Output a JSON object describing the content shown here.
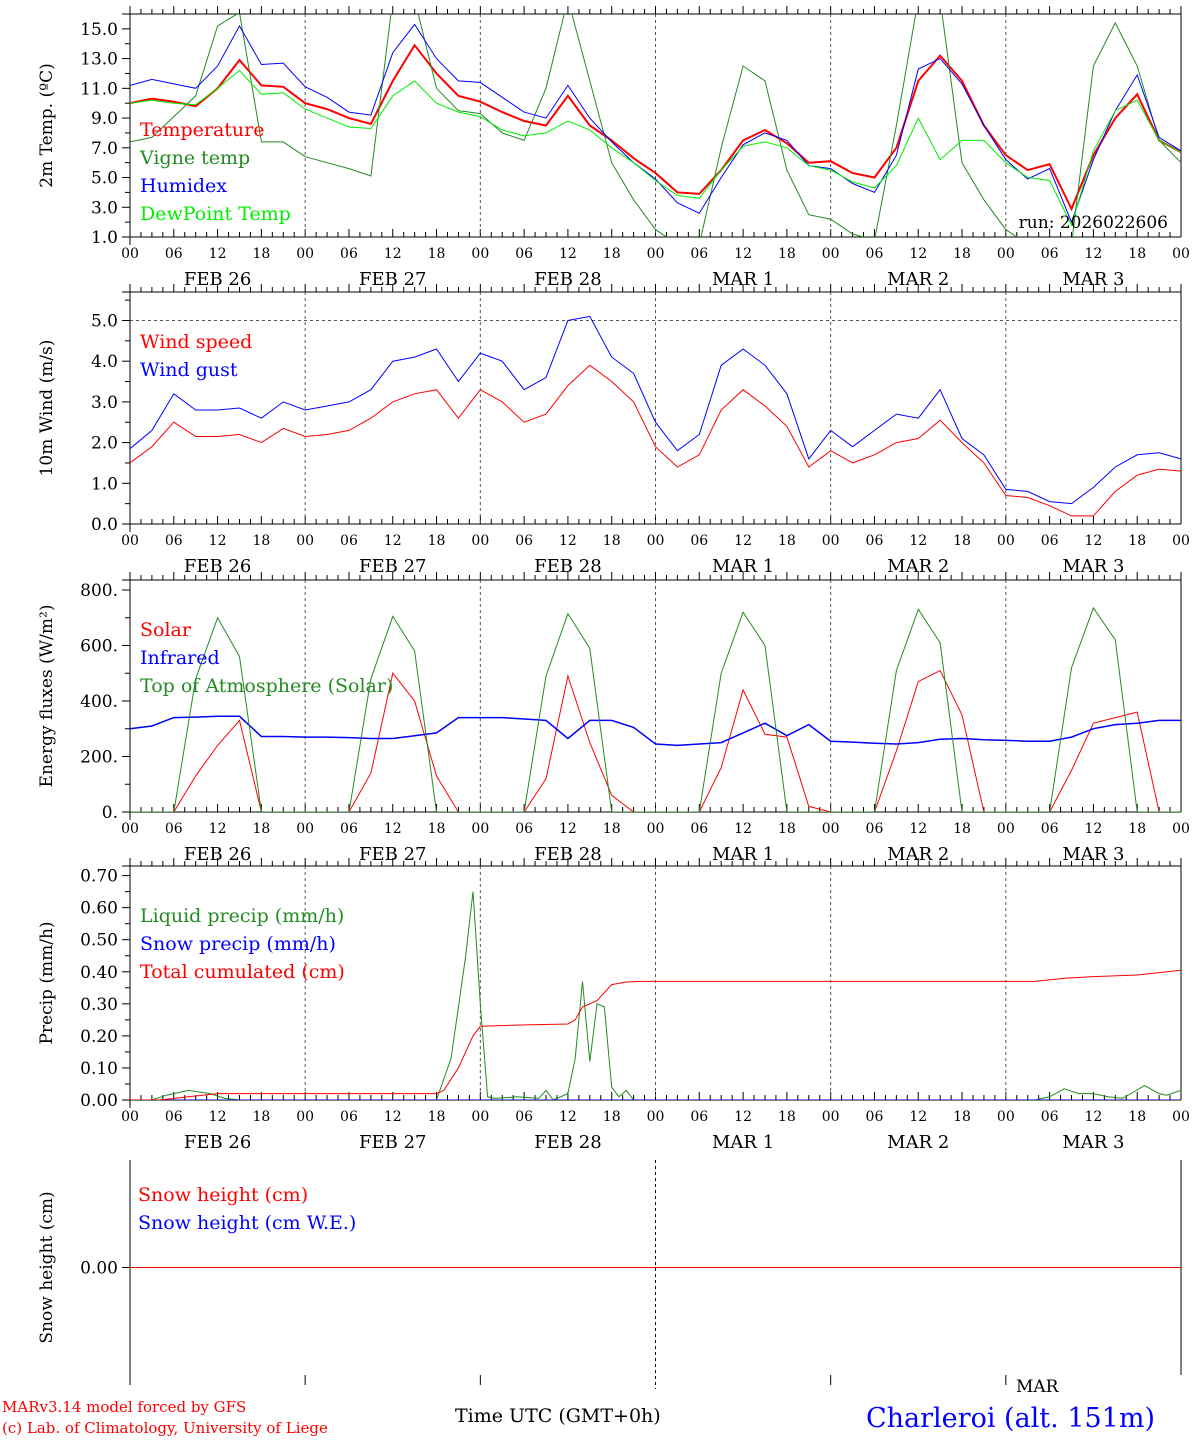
{
  "footer": {
    "credit1": "MARv3.14 model forced by GFS",
    "credit2": "(c) Lab. of Climatology, University of Liege",
    "xlabel": "Time UTC (GMT+0h)",
    "station": "Charleroi (alt. 151m)",
    "overlap_label": "MAR"
  },
  "colors": {
    "red": "#ff0000",
    "green": "#228b22",
    "blue": "#0000ff",
    "lime": "#00ee00"
  },
  "chart_data": [
    {
      "type": "line",
      "ylabel": "2m Temp. (ºC)",
      "ylim": [
        1,
        16
      ],
      "yticks": [
        "1.0",
        "3.0",
        "5.0",
        "7.0",
        "9.0",
        "11.0",
        "13.0",
        "15.0"
      ],
      "ytick_values": [
        1,
        3,
        5,
        7,
        9,
        11,
        13,
        15
      ],
      "annotation": "run: 2026022606",
      "xlabel_hours": [
        "00",
        "06",
        "12",
        "18",
        "00",
        "06",
        "12",
        "18",
        "00",
        "06",
        "12",
        "18",
        "00",
        "06",
        "12",
        "18",
        "00",
        "06",
        "12",
        "18",
        "00",
        "06",
        "12",
        "18",
        "00"
      ],
      "days": [
        "FEB 26",
        "FEB 27",
        "FEB 28",
        "MAR  1",
        "MAR  2",
        "MAR  3"
      ],
      "series": [
        {
          "name": "Temperature",
          "color": "#ff0000",
          "width": 2,
          "step": 3,
          "values": [
            10.0,
            10.3,
            10.1,
            9.8,
            11.0,
            12.9,
            11.2,
            11.1,
            10.0,
            9.6,
            9.0,
            8.6,
            11.5,
            13.9,
            12.0,
            10.5,
            10.1,
            9.4,
            8.8,
            8.5,
            10.5,
            8.5,
            7.5,
            6.3,
            5.3,
            4.0,
            3.9,
            5.5,
            7.5,
            8.2,
            7.3,
            6.0,
            6.1,
            5.3,
            5.0,
            7.0,
            11.5,
            13.2,
            11.5,
            8.5,
            6.5,
            5.5,
            5.9,
            2.9,
            6.5,
            9.0,
            10.6,
            7.5,
            6.7
          ]
        },
        {
          "name": "Vigne temp",
          "color": "#228b22",
          "width": 1,
          "step": 3,
          "values": [
            7.4,
            7.7,
            9.1,
            10.5,
            15.2,
            16.1,
            7.4,
            7.4,
            6.4,
            6.0,
            5.6,
            5.1,
            17,
            17,
            11.0,
            9.5,
            9.3,
            8.0,
            7.5,
            11.0,
            17,
            11.5,
            6.0,
            3.5,
            1.5,
            0.5,
            0.5,
            7.0,
            12.5,
            11.5,
            5.5,
            2.5,
            2.2,
            1.2,
            0.8,
            8.5,
            17,
            17,
            6.0,
            3.5,
            1.5,
            0.5,
            0.3,
            0.5,
            12.5,
            15.4,
            12.5,
            7.5,
            6.0
          ]
        },
        {
          "name": "Humidex",
          "color": "#0000ff",
          "width": 1,
          "step": 3,
          "values": [
            11.2,
            11.6,
            11.3,
            11.0,
            12.5,
            15.2,
            12.6,
            12.7,
            11.1,
            10.4,
            9.4,
            9.2,
            13.4,
            15.3,
            13.0,
            11.5,
            11.4,
            10.4,
            9.4,
            9.0,
            11.2,
            9.0,
            7.4,
            6.0,
            4.9,
            3.3,
            2.6,
            5.0,
            7.2,
            8.0,
            7.5,
            5.8,
            5.6,
            4.6,
            4.0,
            6.5,
            12.3,
            13.0,
            11.3,
            8.5,
            6.2,
            4.9,
            5.6,
            2.0,
            6.2,
            9.5,
            11.9,
            7.7,
            6.8
          ]
        },
        {
          "name": "DewPoint Temp",
          "color": "#00ee00",
          "width": 1,
          "step": 3,
          "values": [
            10.0,
            10.2,
            10.0,
            9.9,
            11.0,
            12.2,
            10.6,
            10.7,
            9.6,
            9.0,
            8.4,
            8.3,
            10.5,
            11.5,
            10.0,
            9.4,
            9.1,
            8.2,
            7.8,
            8.0,
            8.8,
            8.2,
            7.0,
            6.0,
            4.8,
            3.8,
            3.6,
            5.5,
            7.1,
            7.4,
            7.0,
            5.8,
            5.5,
            4.7,
            4.3,
            5.8,
            9.0,
            6.2,
            7.5,
            7.5,
            6.0,
            5.0,
            4.8,
            1.8,
            6.8,
            9.5,
            10.2,
            7.5,
            6.7
          ]
        }
      ]
    },
    {
      "type": "line",
      "ylabel": "10m Wind (m/s)",
      "ylim": [
        0,
        5.7
      ],
      "yticks": [
        "0.0",
        "1.0",
        "2.0",
        "3.0",
        "4.0",
        "5.0"
      ],
      "ytick_values": [
        0,
        1,
        2,
        3,
        4,
        5
      ],
      "hline": 5,
      "series": [
        {
          "name": "Wind speed",
          "color": "#ff0000",
          "width": 1,
          "step": 3,
          "values": [
            1.5,
            1.9,
            2.5,
            2.15,
            2.15,
            2.2,
            2.0,
            2.35,
            2.15,
            2.2,
            2.3,
            2.6,
            3.0,
            3.2,
            3.3,
            2.6,
            3.3,
            3.0,
            2.5,
            2.7,
            3.4,
            3.9,
            3.5,
            3.0,
            1.9,
            1.4,
            1.7,
            2.8,
            3.3,
            2.9,
            2.4,
            1.4,
            1.8,
            1.5,
            1.7,
            2.0,
            2.1,
            2.55,
            2.0,
            1.5,
            0.7,
            0.65,
            0.45,
            0.2,
            0.2,
            0.8,
            1.2,
            1.35,
            1.3
          ]
        },
        {
          "name": "Wind gust",
          "color": "#0000ff",
          "width": 1,
          "step": 3,
          "values": [
            1.85,
            2.3,
            3.2,
            2.8,
            2.8,
            2.85,
            2.6,
            3.0,
            2.8,
            2.9,
            3.0,
            3.3,
            4.0,
            4.1,
            4.3,
            3.5,
            4.2,
            4.0,
            3.3,
            3.6,
            5.0,
            5.1,
            4.1,
            3.7,
            2.5,
            1.8,
            2.2,
            3.9,
            4.3,
            3.9,
            3.2,
            1.6,
            2.3,
            1.9,
            2.3,
            2.7,
            2.6,
            3.3,
            2.1,
            1.7,
            0.85,
            0.8,
            0.55,
            0.5,
            0.9,
            1.4,
            1.7,
            1.75,
            1.6
          ]
        }
      ]
    },
    {
      "type": "line",
      "ylabel": "Energy fluxes (W/m²)",
      "ylim": [
        0,
        836
      ],
      "yticks": [
        "0.",
        "200.",
        "400.",
        "600.",
        "800."
      ],
      "ytick_values": [
        0,
        200,
        400,
        600,
        800
      ],
      "series": [
        {
          "name": "Solar",
          "color": "#ff0000",
          "width": 1,
          "step": 3,
          "values": [
            0,
            0,
            0,
            130,
            240,
            330,
            0,
            0,
            0,
            0,
            0,
            140,
            500,
            400,
            130,
            0,
            0,
            0,
            0,
            120,
            490,
            250,
            60,
            0,
            0,
            0,
            0,
            160,
            440,
            280,
            270,
            20,
            0,
            0,
            0,
            220,
            470,
            510,
            350,
            0,
            0,
            0,
            0,
            150,
            320,
            340,
            360,
            0,
            0
          ]
        },
        {
          "name": "Infrared",
          "color": "#0000ff",
          "width": 1.5,
          "step": 3,
          "values": [
            300,
            310,
            340,
            342,
            345,
            345,
            272,
            272,
            270,
            270,
            268,
            265,
            265,
            275,
            285,
            340,
            340,
            340,
            335,
            330,
            265,
            330,
            330,
            305,
            245,
            240,
            245,
            250,
            285,
            320,
            275,
            315,
            255,
            252,
            248,
            245,
            250,
            262,
            265,
            260,
            258,
            255,
            255,
            270,
            300,
            315,
            320,
            330,
            330
          ]
        },
        {
          "name": "Top of Atmosphere (Solar)",
          "color": "#228b22",
          "width": 1,
          "step": 3,
          "values": [
            0,
            0,
            0,
            480,
            700,
            560,
            0,
            0,
            0,
            0,
            0,
            480,
            705,
            580,
            0,
            0,
            0,
            0,
            0,
            490,
            715,
            590,
            0,
            0,
            0,
            0,
            0,
            500,
            720,
            600,
            0,
            0,
            0,
            0,
            0,
            510,
            730,
            610,
            0,
            0,
            0,
            0,
            0,
            520,
            735,
            620,
            0,
            0,
            0
          ]
        }
      ]
    },
    {
      "type": "line",
      "ylabel": "Precip (mm/h)",
      "ylim": [
        0,
        0.73
      ],
      "yticks": [
        "0.00",
        "0.10",
        "0.20",
        "0.30",
        "0.40",
        "0.50",
        "0.60",
        "0.70"
      ],
      "ytick_values": [
        0,
        0.1,
        0.2,
        0.3,
        0.4,
        0.5,
        0.6,
        0.7
      ],
      "series": [
        {
          "name": "Liquid precip (mm/h)",
          "color": "#228b22",
          "width": 1,
          "points": [
            [
              0,
              0
            ],
            [
              3,
              0
            ],
            [
              5,
              0.015
            ],
            [
              8,
              0.03
            ],
            [
              11,
              0.02
            ],
            [
              13,
              0.005
            ],
            [
              15,
              0
            ],
            [
              42,
              0
            ],
            [
              44,
              0.13
            ],
            [
              46,
              0.45
            ],
            [
              47,
              0.65
            ],
            [
              48,
              0.3
            ],
            [
              49,
              0.01
            ],
            [
              50,
              0.005
            ],
            [
              53,
              0.01
            ],
            [
              56,
              0.005
            ],
            [
              57,
              0.03
            ],
            [
              58,
              0
            ],
            [
              60,
              0.02
            ],
            [
              61,
              0.13
            ],
            [
              62,
              0.37
            ],
            [
              63,
              0.12
            ],
            [
              64,
              0.3
            ],
            [
              65,
              0.29
            ],
            [
              66,
              0.04
            ],
            [
              67,
              0.01
            ],
            [
              68,
              0.03
            ],
            [
              69,
              0
            ],
            [
              124,
              0
            ],
            [
              126,
              0.01
            ],
            [
              128,
              0.035
            ],
            [
              130,
              0.02
            ],
            [
              132,
              0.02
            ],
            [
              134,
              0.01
            ],
            [
              136,
              0.005
            ],
            [
              139,
              0.045
            ],
            [
              141,
              0.02
            ],
            [
              142,
              0.015
            ],
            [
              144,
              0.03
            ]
          ]
        },
        {
          "name": "Snow precip (mm/h)",
          "color": "#0000ff",
          "width": 1,
          "points": [
            [
              0,
              0
            ],
            [
              144,
              0
            ]
          ]
        },
        {
          "name": "Total cumulated (cm)",
          "color": "#ff0000",
          "width": 1,
          "points": [
            [
              0,
              0
            ],
            [
              4,
              0
            ],
            [
              8,
              0.01
            ],
            [
              12,
              0.02
            ],
            [
              42,
              0.02
            ],
            [
              43,
              0.03
            ],
            [
              45,
              0.1
            ],
            [
              47,
              0.2
            ],
            [
              48,
              0.23
            ],
            [
              55,
              0.235
            ],
            [
              60,
              0.237
            ],
            [
              61,
              0.25
            ],
            [
              62,
              0.29
            ],
            [
              64,
              0.31
            ],
            [
              66,
              0.36
            ],
            [
              68,
              0.368
            ],
            [
              70,
              0.37
            ],
            [
              124,
              0.37
            ],
            [
              128,
              0.38
            ],
            [
              132,
              0.385
            ],
            [
              138,
              0.39
            ],
            [
              144,
              0.405
            ]
          ]
        }
      ]
    },
    {
      "type": "line",
      "ylabel": "Snow height (cm)",
      "ylim": [
        -1,
        1
      ],
      "yticks": [
        "0.00"
      ],
      "ytick_values": [
        0
      ],
      "bottom_panel": true,
      "series": [
        {
          "name": "Snow height (cm)",
          "color": "#ff0000",
          "width": 1,
          "points": [
            [
              0,
              0
            ],
            [
              144,
              0
            ]
          ]
        },
        {
          "name": "Snow height (cm W.E.)",
          "color": "#0000ff",
          "width": 1,
          "hidden": true,
          "points": [
            [
              0,
              0
            ],
            [
              144,
              0
            ]
          ]
        }
      ]
    }
  ]
}
